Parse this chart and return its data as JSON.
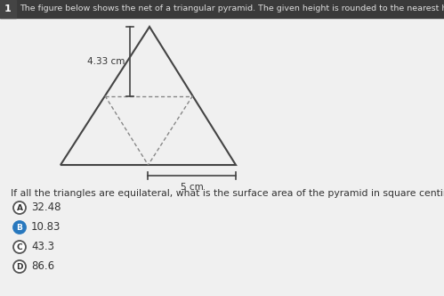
{
  "title_number": "1",
  "title_text": "The figure below shows the net of a triangular pyramid. The given height is rounded to the nearest hundredth",
  "question_text": "If all the triangles are equilateral, what is the surface area of the pyramid in square centimeters?",
  "height_label": "4.33 cm",
  "base_label": "5 cm",
  "answers": [
    {
      "letter": "A",
      "text": "32.48",
      "selected": false
    },
    {
      "letter": "B",
      "text": "10.83",
      "selected": true
    },
    {
      "letter": "C",
      "text": "43.3",
      "selected": false
    },
    {
      "letter": "D",
      "text": "86.6",
      "selected": false
    }
  ],
  "bg_color": "#f0f0f0",
  "title_bar_color": "#3a3a3a",
  "title_num_bg": "#444444",
  "title_text_color": "#dddddd",
  "body_bg": "#f0f0f0",
  "body_text_color": "#333333",
  "line_color": "#444444",
  "dashed_color": "#888888",
  "selected_circle_color": "#2878be",
  "unselected_circle_edge": "#555555",
  "answer_text_color": "#333333",
  "circle_r": 7
}
